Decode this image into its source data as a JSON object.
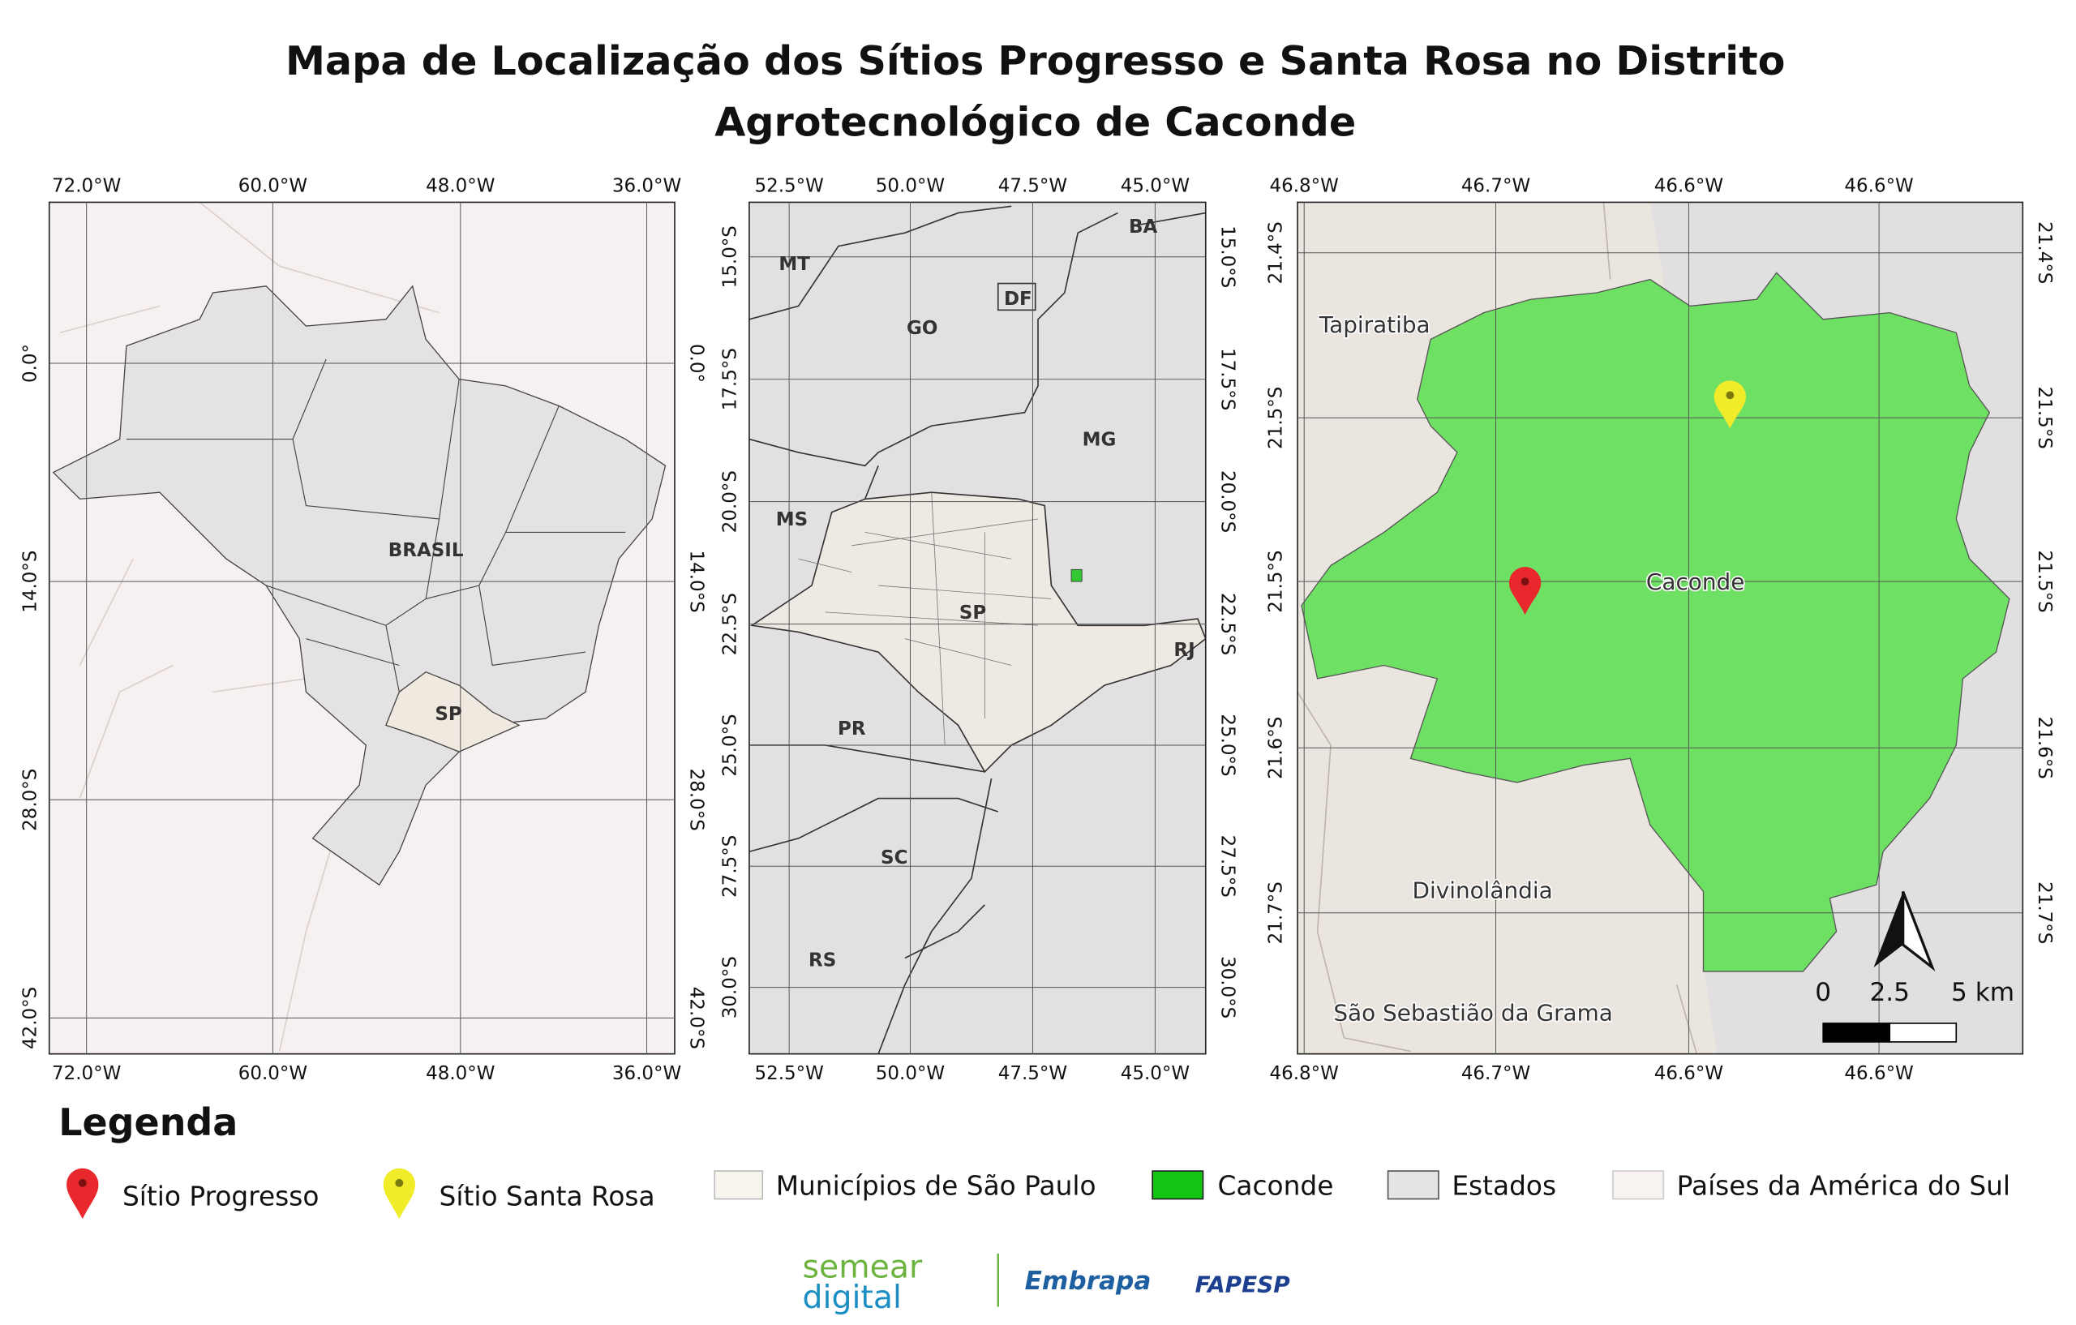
{
  "title": [
    "Mapa de Localização dos Sítios Progresso e Santa Rosa no Distrito",
    "Agrotecnológico de Caconde"
  ],
  "panels": [
    {
      "lon_ticks": [
        "72.0°W",
        "60.0°W",
        "48.0°W",
        "36.0°W"
      ],
      "lat_ticks": [
        "0.0°",
        "14.0°S",
        "28.0°S",
        "42.0°S"
      ],
      "labels": [
        "BRASIL",
        "SP"
      ]
    },
    {
      "lon_ticks": [
        "52.5°W",
        "50.0°W",
        "47.5°W",
        "45.0°W"
      ],
      "lat_ticks": [
        "15.0°S",
        "17.5°S",
        "20.0°S",
        "22.5°S",
        "25.0°S",
        "27.5°S",
        "30.0°S"
      ],
      "labels": [
        "MT",
        "BA",
        "DF",
        "GO",
        "MG",
        "MS",
        "SP",
        "RJ",
        "PR",
        "SC",
        "RS"
      ]
    },
    {
      "lon_ticks": [
        "46.8°W",
        "46.7°W",
        "46.6°W",
        "46.6°W"
      ],
      "lat_ticks": [
        "21.4°S",
        "21.5°S",
        "21.5°S",
        "21.6°S",
        "21.7°S"
      ],
      "labels": [
        "Tapiratiba",
        "Caconde",
        "Divinolândia",
        "São Sebastião da Grama"
      ],
      "scale_labels": [
        "0",
        "2.5",
        "5 km"
      ]
    }
  ],
  "legend": {
    "title": "Legenda",
    "items": [
      "Sítio Progresso",
      "Sítio Santa Rosa",
      "Municípios de São Paulo",
      "Caconde",
      "Estados",
      "Países da América do Sul"
    ]
  },
  "logos": [
    "semear",
    "digital",
    "Embrapa",
    "FAPESP"
  ]
}
